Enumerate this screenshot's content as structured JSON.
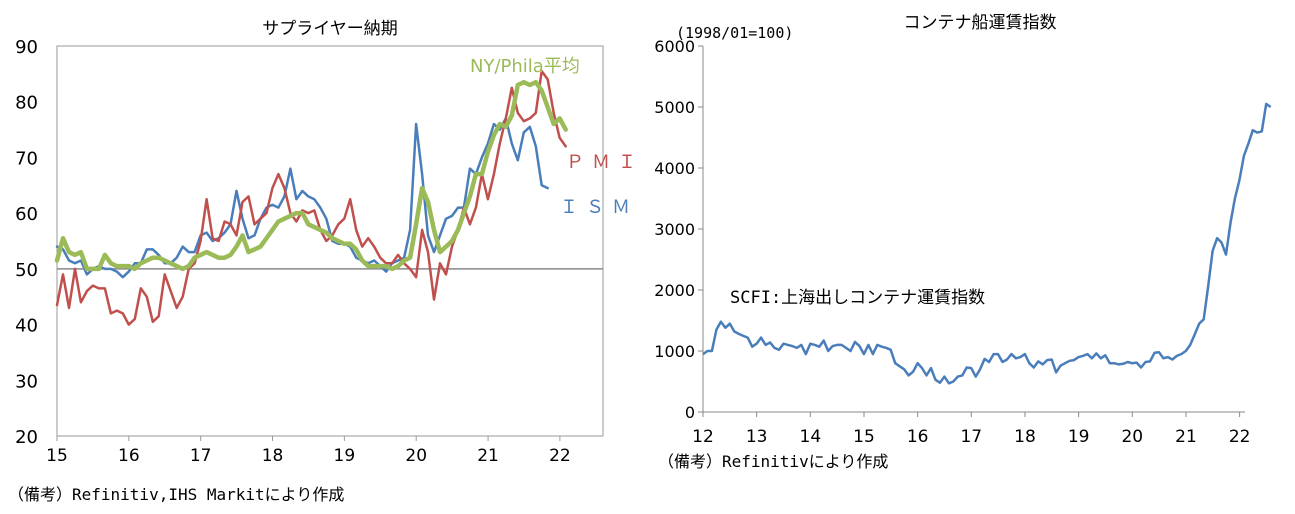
{
  "chart_data": [
    {
      "type": "line",
      "title": "サプライヤー納期",
      "source_note": "（備考）Refinitiv,IHS Markitにより作成",
      "x_tick_labels": [
        "15",
        "16",
        "17",
        "18",
        "19",
        "20",
        "21",
        "22"
      ],
      "y_tick_labels": [
        "20",
        "30",
        "40",
        "50",
        "60",
        "70",
        "80",
        "90"
      ],
      "ylim": [
        20,
        90
      ],
      "reference_line": 50,
      "series": [
        {
          "name": "ＩＳＭ",
          "label": "ＩＳＭ",
          "color": "#4a7ebb",
          "start": 2015.0,
          "step": 0.0833,
          "values": [
            54,
            53.5,
            51.5,
            51,
            51.5,
            49,
            50,
            50.5,
            50,
            50,
            49.5,
            48.5,
            49.5,
            51,
            51,
            53.5,
            53.5,
            52.5,
            51,
            51,
            52,
            54,
            53,
            53,
            56,
            56.5,
            55,
            55.5,
            56.5,
            58,
            64,
            59,
            55.5,
            56,
            59,
            61,
            61.5,
            61,
            63,
            68,
            62.5,
            64,
            63,
            62.5,
            61,
            59,
            55,
            54.5,
            54.5,
            54,
            52,
            51.5,
            51,
            51.5,
            50.5,
            49.5,
            51,
            51.5,
            52,
            57,
            76,
            67,
            56,
            53,
            56,
            59,
            59.5,
            61,
            61,
            68,
            67,
            70,
            72.5,
            76,
            75,
            77,
            72.5,
            69.5,
            74.5,
            75.5,
            72,
            65,
            64.5
          ]
        },
        {
          "name": "ＰＭＩ",
          "label": "ＰＭＩ",
          "color": "#c0504d",
          "start": 2015.0,
          "step": 0.0833,
          "values": [
            43.5,
            49,
            43,
            50,
            44,
            46,
            47,
            46.5,
            46.5,
            42,
            42.5,
            42,
            40,
            41,
            46.5,
            45,
            40.5,
            41.5,
            49,
            46,
            43,
            45,
            50,
            51,
            55,
            62.5,
            55.5,
            55,
            58.5,
            58,
            56,
            62,
            63,
            58,
            59,
            60,
            64.5,
            67,
            64.5,
            60,
            58.5,
            60.5,
            60,
            60.5,
            57,
            55,
            56,
            58,
            59,
            62.5,
            57,
            54,
            55.5,
            54,
            52,
            51,
            51,
            52.5,
            51,
            50,
            48.5,
            57,
            53,
            44.5,
            51,
            49,
            54,
            57,
            61,
            58,
            61,
            67,
            62.5,
            67,
            72.5,
            77,
            82.5,
            78,
            76.5,
            77,
            78,
            85.5,
            84,
            78,
            73.5,
            72
          ]
        },
        {
          "name": "NY/Phila平均",
          "label": "NY/Phila平均",
          "color": "#9bbb59",
          "start": 2015.0,
          "step": 0.0833,
          "values": [
            51.5,
            55.5,
            53,
            52.5,
            53,
            50,
            50,
            50,
            52.5,
            51,
            50.5,
            50.5,
            50.5,
            50,
            51,
            51.5,
            52,
            52,
            51.5,
            51,
            50.5,
            50,
            50.5,
            52,
            52.5,
            53,
            52.5,
            52,
            52,
            52.5,
            54,
            56,
            53,
            53.5,
            54,
            55.5,
            57,
            58.5,
            59,
            59.5,
            60,
            60,
            58,
            57.5,
            57,
            56.5,
            55.5,
            55,
            54.5,
            54.5,
            53.5,
            51.5,
            50.5,
            50.5,
            50.5,
            50.5,
            50,
            50.5,
            51.5,
            52,
            58,
            64.5,
            62,
            57,
            53,
            54,
            55,
            57,
            60,
            63,
            67,
            67,
            71,
            74,
            76,
            75.5,
            77.5,
            83,
            83.5,
            83,
            83.5,
            82,
            79,
            76,
            77,
            75
          ]
        }
      ]
    },
    {
      "type": "line",
      "title": "コンテナ船運賃指数",
      "unit_label": "(1998/01=100)",
      "annotation": "SCFI:上海出しコンテナ運賃指数",
      "source_note": "（備考）Refinitivにより作成",
      "x_tick_labels": [
        "12",
        "13",
        "14",
        "15",
        "16",
        "17",
        "18",
        "19",
        "20",
        "21",
        "22"
      ],
      "y_tick_labels": [
        "0",
        "1000",
        "2000",
        "3000",
        "4000",
        "5000",
        "6000"
      ],
      "ylim": [
        0,
        6000
      ],
      "series": [
        {
          "name": "SCFI",
          "color": "#4a7ebb",
          "start": 2012.0,
          "step": 0.0833,
          "values": [
            950,
            1000,
            1000,
            1350,
            1480,
            1380,
            1450,
            1320,
            1280,
            1250,
            1220,
            1070,
            1120,
            1220,
            1100,
            1140,
            1050,
            1020,
            1120,
            1100,
            1080,
            1050,
            1100,
            950,
            1120,
            1100,
            1070,
            1170,
            1000,
            1080,
            1100,
            1100,
            1050,
            1000,
            1150,
            1080,
            950,
            1100,
            950,
            1100,
            1070,
            1050,
            1020,
            800,
            750,
            700,
            600,
            660,
            800,
            720,
            600,
            720,
            530,
            480,
            580,
            470,
            500,
            580,
            600,
            730,
            720,
            580,
            700,
            870,
            820,
            950,
            950,
            820,
            860,
            950,
            880,
            900,
            950,
            800,
            730,
            830,
            780,
            850,
            860,
            650,
            760,
            800,
            840,
            850,
            900,
            920,
            950,
            880,
            960,
            880,
            930,
            800,
            800,
            780,
            790,
            820,
            800,
            810,
            730,
            820,
            830,
            970,
            980,
            880,
            900,
            860,
            920,
            950,
            1000,
            1100,
            1270,
            1450,
            1520,
            2050,
            2640,
            2850,
            2780,
            2580,
            3100,
            3500,
            3800,
            4200,
            4400,
            4620,
            4580,
            4600,
            5050,
            5000
          ]
        }
      ]
    }
  ]
}
